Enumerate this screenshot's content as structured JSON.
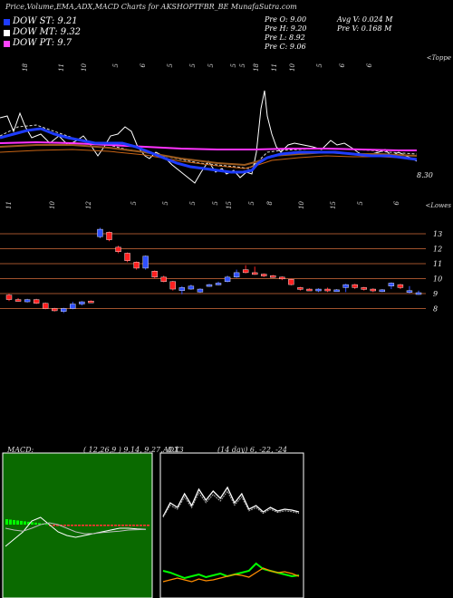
{
  "header": {
    "title": "Price,Volume,EMA,ADX,MACD Charts for AKSHOPTFBR_BE MunafaSutra.com"
  },
  "legend": [
    {
      "label": "DOW ST: 9.21",
      "color": "#1e3cff"
    },
    {
      "label": "DOW MT: 9.32",
      "color": "#ffffff"
    },
    {
      "label": "DOW PT: 9.7",
      "color": "#ff44ff"
    }
  ],
  "stats": {
    "prev_open": "Pre   O: 9.00",
    "prev_high": "Pre   H: 9.20",
    "prev_low": "Pre   L: 8.92",
    "prev_close": "Pre   C: 9.06",
    "avg_volume": "Avg V: 0.024   M",
    "prev_volume": "Pre   V: 0.168   M"
  },
  "volume_panel": {
    "top_labels": [
      "18",
      "11",
      "10",
      "5",
      "6",
      "5",
      "5",
      "5",
      "5",
      "5",
      "18",
      "11",
      "10",
      "5",
      "6",
      "6"
    ],
    "bottom_labels": [
      "11",
      "10",
      "12",
      "5",
      "5",
      "5",
      "5",
      "15",
      "5",
      "8",
      "10",
      "15",
      "5",
      "6"
    ],
    "top_right": "<Toppe",
    "bottom_right": "<Lowes",
    "last_price": "8.30"
  },
  "colors": {
    "blue_line": "#1e3cff",
    "white_line": "#ffffff",
    "magenta_line": "#ff33ff",
    "orange_line": "#c86414",
    "ema_line": "#9a5a1e",
    "grid_line": "#a0522d",
    "up_candle": "#3050ff",
    "down_candle": "#ff2020",
    "macd_bg": "#0a6a00",
    "adx_green": "#00ff00",
    "adx_orange": "#ff8c00"
  },
  "chart_data": [
    {
      "type": "line",
      "name": "price-volume-ema",
      "series": [
        {
          "name": "DOW ST",
          "values": [
            14.5,
            14.0,
            13.6,
            13.2,
            12.6,
            12.3,
            12.2,
            12.1,
            12.0,
            11.8,
            11.6,
            11.3,
            10.8,
            10.2,
            9.9,
            9.8,
            9.7,
            9.6,
            9.55,
            9.5,
            9.45,
            9.4,
            9.38,
            9.35,
            9.3,
            9.28,
            9.25,
            9.21
          ]
        },
        {
          "name": "DOW MT",
          "values": [
            13.8,
            13.6,
            13.4,
            13.0,
            12.7,
            12.4,
            12.2,
            12.0,
            11.8,
            11.6,
            11.4,
            11.2,
            11.0,
            10.7,
            10.4,
            10.2,
            10.0,
            9.9,
            9.8,
            9.7,
            9.6,
            9.5,
            9.45,
            9.4,
            9.38,
            9.36,
            9.34,
            9.32
          ]
        },
        {
          "name": "DOW PT",
          "values": [
            12.0,
            11.95,
            11.9,
            11.85,
            11.8,
            11.7,
            11.6,
            11.5,
            11.4,
            11.3,
            11.2,
            11.1,
            11.0,
            10.9,
            10.8,
            10.7,
            10.6,
            10.5,
            10.4,
            10.3,
            10.2,
            10.1,
            10.0,
            9.95,
            9.9,
            9.85,
            9.78,
            9.7
          ]
        }
      ]
    },
    {
      "type": "bar",
      "name": "candlesticks",
      "yticks": [
        13,
        12,
        11,
        10,
        9,
        8
      ],
      "candles": [
        {
          "o": 8.6,
          "c": 8.9,
          "h": 9.0,
          "l": 8.5,
          "up": false
        },
        {
          "o": 8.5,
          "c": 8.6,
          "h": 8.7,
          "l": 8.45,
          "up": false
        },
        {
          "o": 8.45,
          "c": 8.6,
          "h": 8.65,
          "l": 8.4,
          "up": true
        },
        {
          "o": 8.6,
          "c": 8.35,
          "h": 8.65,
          "l": 8.3,
          "up": false
        },
        {
          "o": 8.35,
          "c": 8.0,
          "h": 8.4,
          "l": 7.95,
          "up": false
        },
        {
          "o": 8.0,
          "c": 7.85,
          "h": 8.05,
          "l": 7.8,
          "up": false
        },
        {
          "o": 7.8,
          "c": 8.0,
          "h": 8.05,
          "l": 7.7,
          "up": true
        },
        {
          "o": 8.0,
          "c": 8.3,
          "h": 8.45,
          "l": 7.95,
          "up": true
        },
        {
          "o": 8.3,
          "c": 8.45,
          "h": 8.5,
          "l": 8.2,
          "up": true
        },
        {
          "o": 8.45,
          "c": 8.5,
          "h": 8.55,
          "l": 8.4,
          "up": false
        },
        {
          "o": 12.8,
          "c": 13.3,
          "h": 13.4,
          "l": 12.7,
          "up": true
        },
        {
          "o": 13.1,
          "c": 12.6,
          "h": 13.15,
          "l": 12.5,
          "up": false
        },
        {
          "o": 12.1,
          "c": 11.8,
          "h": 12.2,
          "l": 11.7,
          "up": false
        },
        {
          "o": 11.7,
          "c": 11.2,
          "h": 11.75,
          "l": 11.1,
          "up": false
        },
        {
          "o": 11.1,
          "c": 10.7,
          "h": 11.15,
          "l": 10.6,
          "up": false
        },
        {
          "o": 10.7,
          "c": 11.5,
          "h": 11.55,
          "l": 10.6,
          "up": true
        },
        {
          "o": 10.5,
          "c": 10.1,
          "h": 10.55,
          "l": 10.0,
          "up": false
        },
        {
          "o": 10.1,
          "c": 9.8,
          "h": 10.2,
          "l": 9.75,
          "up": false
        },
        {
          "o": 9.8,
          "c": 9.3,
          "h": 9.85,
          "l": 9.2,
          "up": false
        },
        {
          "o": 9.2,
          "c": 9.4,
          "h": 9.5,
          "l": 8.95,
          "up": true
        },
        {
          "o": 9.3,
          "c": 9.5,
          "h": 9.6,
          "l": 9.25,
          "up": true
        },
        {
          "o": 9.1,
          "c": 9.3,
          "h": 9.35,
          "l": 9.05,
          "up": true
        },
        {
          "o": 9.5,
          "c": 9.6,
          "h": 9.65,
          "l": 9.45,
          "up": true
        },
        {
          "o": 9.6,
          "c": 9.7,
          "h": 9.8,
          "l": 9.55,
          "up": true
        },
        {
          "o": 9.8,
          "c": 10.1,
          "h": 10.2,
          "l": 9.75,
          "up": true
        },
        {
          "o": 10.1,
          "c": 10.4,
          "h": 10.6,
          "l": 10.05,
          "up": true
        },
        {
          "o": 10.6,
          "c": 10.4,
          "h": 10.9,
          "l": 10.35,
          "up": false
        },
        {
          "o": 10.4,
          "c": 10.3,
          "h": 10.8,
          "l": 10.25,
          "up": false
        },
        {
          "o": 10.3,
          "c": 10.2,
          "h": 10.35,
          "l": 10.1,
          "up": false
        },
        {
          "o": 10.2,
          "c": 10.1,
          "h": 10.25,
          "l": 10.05,
          "up": false
        },
        {
          "o": 10.1,
          "c": 10.0,
          "h": 10.15,
          "l": 9.9,
          "up": false
        },
        {
          "o": 9.95,
          "c": 9.6,
          "h": 10.0,
          "l": 9.55,
          "up": false
        },
        {
          "o": 9.4,
          "c": 9.3,
          "h": 9.45,
          "l": 9.2,
          "up": false
        },
        {
          "o": 9.3,
          "c": 9.25,
          "h": 9.35,
          "l": 9.2,
          "up": false
        },
        {
          "o": 9.25,
          "c": 9.3,
          "h": 9.35,
          "l": 9.1,
          "up": true
        },
        {
          "o": 9.3,
          "c": 9.2,
          "h": 9.4,
          "l": 9.1,
          "up": false
        },
        {
          "o": 9.2,
          "c": 9.25,
          "h": 9.3,
          "l": 9.15,
          "up": true
        },
        {
          "o": 9.4,
          "c": 9.6,
          "h": 9.65,
          "l": 9.1,
          "up": true
        },
        {
          "o": 9.6,
          "c": 9.4,
          "h": 9.65,
          "l": 9.3,
          "up": false
        },
        {
          "o": 9.4,
          "c": 9.3,
          "h": 9.45,
          "l": 9.2,
          "up": false
        },
        {
          "o": 9.3,
          "c": 9.2,
          "h": 9.35,
          "l": 9.1,
          "up": false
        },
        {
          "o": 9.2,
          "c": 9.25,
          "h": 9.3,
          "l": 9.1,
          "up": true
        },
        {
          "o": 9.5,
          "c": 9.7,
          "h": 9.75,
          "l": 9.3,
          "up": true
        },
        {
          "o": 9.6,
          "c": 9.4,
          "h": 9.65,
          "l": 9.3,
          "up": false
        },
        {
          "o": 9.1,
          "c": 9.2,
          "h": 9.5,
          "l": 9.0,
          "up": true
        },
        {
          "o": 9.0,
          "c": 9.06,
          "h": 9.2,
          "l": 8.92,
          "up": true
        }
      ]
    },
    {
      "type": "line",
      "name": "macd",
      "title": "MACD:",
      "params": "( 12,26,9 ) 9.14,  9.27,  -0.13",
      "series": [
        {
          "name": "macd",
          "values": [
            -0.6,
            -0.4,
            -0.2,
            0.1,
            0.2,
            0.0,
            -0.2,
            -0.3,
            -0.35,
            -0.3,
            -0.25,
            -0.2,
            -0.15,
            -0.1,
            -0.1,
            -0.12,
            -0.13
          ]
        },
        {
          "name": "signal",
          "values": [
            -0.1,
            -0.15,
            -0.18,
            -0.1,
            0.0,
            0.05,
            0.0,
            -0.1,
            -0.2,
            -0.25,
            -0.25,
            -0.22,
            -0.2,
            -0.18,
            -0.15,
            -0.14,
            -0.13
          ]
        }
      ]
    },
    {
      "type": "line",
      "name": "adx",
      "title": "ADX",
      "params": "(14  day) 6,  -22,  -24",
      "series": [
        {
          "name": "adx",
          "values": [
            30,
            45,
            40,
            55,
            42,
            60,
            48,
            58,
            50,
            62,
            45,
            55,
            38,
            42,
            35,
            40,
            36,
            38,
            37,
            35
          ]
        },
        {
          "name": "plus_di",
          "values": [
            20,
            18,
            15,
            12,
            14,
            16,
            13,
            15,
            17,
            14,
            16,
            18,
            20,
            28,
            22,
            20,
            18,
            16,
            14,
            15
          ]
        },
        {
          "name": "minus_di",
          "values": [
            10,
            12,
            14,
            12,
            10,
            13,
            11,
            12,
            14,
            16,
            18,
            17,
            15,
            20,
            25,
            22,
            20,
            21,
            19,
            16
          ]
        }
      ]
    }
  ]
}
